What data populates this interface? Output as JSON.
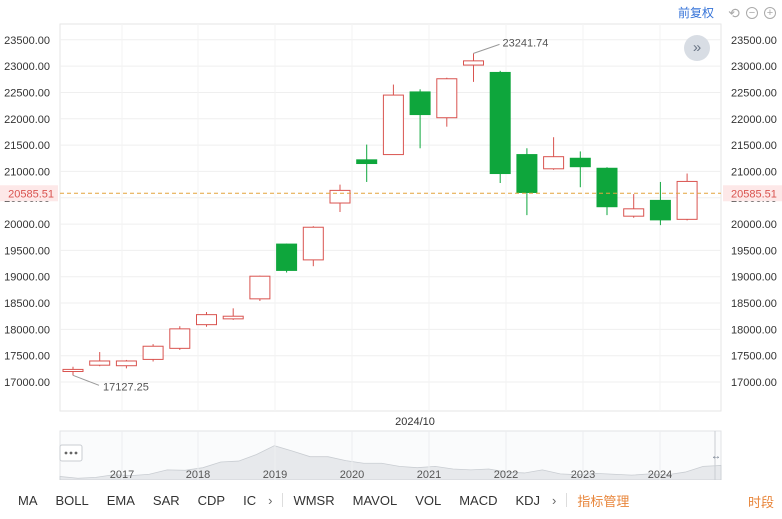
{
  "toolbar": {
    "adjust_label": "前复权",
    "undo_icon": "undo-icon",
    "zoom_out_icon": "zoom-out-icon",
    "zoom_in_icon": "zoom-in-icon"
  },
  "colors": {
    "up": "#d9534f",
    "down": "#0ea63c",
    "price_line": "#e3a33b",
    "price_label_bg": "#fde8e8",
    "price_label_text": "#d9534f",
    "navigator_fill": "#e7e9ec",
    "navigator_stroke": "#c9cdd2"
  },
  "chart_data": {
    "type": "candlestick",
    "yticks": [
      17000,
      17500,
      18000,
      18500,
      19000,
      19500,
      20000,
      20500,
      21000,
      21500,
      22000,
      22500,
      23000,
      23500
    ],
    "ytick_labels": [
      "17000.00",
      "17500.00",
      "18000.00",
      "18500.00",
      "19000.00",
      "19500.00",
      "20000.00",
      "20500.00",
      "21000.00",
      "21500.00",
      "22000.00",
      "22500.00",
      "23000.00",
      "23500.00"
    ],
    "ylim": [
      16450,
      23800
    ],
    "x_crosshair_label": "2024/10",
    "current_price": 20585.51,
    "current_price_label": "20585.51",
    "max_annotation": {
      "index": 15,
      "value": 23241.74,
      "label": "23241.74"
    },
    "min_annotation": {
      "index": 0,
      "value": 17127.25,
      "label": "17127.25"
    },
    "candles": [
      {
        "o": 17200,
        "h": 17290,
        "l": 17127.25,
        "c": 17240
      },
      {
        "o": 17320,
        "h": 17570,
        "l": 17300,
        "c": 17400
      },
      {
        "o": 17310,
        "h": 17420,
        "l": 17260,
        "c": 17400
      },
      {
        "o": 17430,
        "h": 17720,
        "l": 17390,
        "c": 17680
      },
      {
        "o": 17640,
        "h": 18060,
        "l": 17610,
        "c": 18010
      },
      {
        "o": 18090,
        "h": 18330,
        "l": 18050,
        "c": 18280
      },
      {
        "o": 18200,
        "h": 18400,
        "l": 18180,
        "c": 18250
      },
      {
        "o": 18580,
        "h": 19020,
        "l": 18540,
        "c": 19010
      },
      {
        "o": 19620,
        "h": 19630,
        "l": 19080,
        "c": 19120
      },
      {
        "o": 19320,
        "h": 19960,
        "l": 19200,
        "c": 19940
      },
      {
        "o": 20400,
        "h": 20750,
        "l": 20230,
        "c": 20640
      },
      {
        "o": 21220,
        "h": 21510,
        "l": 20800,
        "c": 21150
      },
      {
        "o": 21320,
        "h": 22650,
        "l": 21320,
        "c": 22450
      },
      {
        "o": 22510,
        "h": 22560,
        "l": 21440,
        "c": 22080
      },
      {
        "o": 22020,
        "h": 22780,
        "l": 21850,
        "c": 22760
      },
      {
        "o": 23020,
        "h": 23241.74,
        "l": 22700,
        "c": 23100
      },
      {
        "o": 22880,
        "h": 22910,
        "l": 20780,
        "c": 20960
      },
      {
        "o": 21320,
        "h": 21440,
        "l": 20170,
        "c": 20600
      },
      {
        "o": 21050,
        "h": 21650,
        "l": 21030,
        "c": 21280
      },
      {
        "o": 21250,
        "h": 21380,
        "l": 20700,
        "c": 21090
      },
      {
        "o": 21060,
        "h": 21080,
        "l": 20170,
        "c": 20330
      },
      {
        "o": 20150,
        "h": 20570,
        "l": 20120,
        "c": 20290
      },
      {
        "o": 20450,
        "h": 20800,
        "l": 19980,
        "c": 20080
      },
      {
        "o": 20090,
        "h": 20960,
        "l": 20070,
        "c": 20810
      }
    ],
    "navigator": {
      "year_labels": [
        "2017",
        "2018",
        "2019",
        "2020",
        "2021",
        "2022",
        "2023",
        "2024"
      ],
      "handle_icon": "ellipsis-handle-icon",
      "resize_icon": "resize-arrows-icon"
    }
  },
  "expand_icon": "double-chevron-right-icon",
  "indicators": {
    "main": [
      "MA",
      "BOLL",
      "EMA",
      "SAR",
      "CDP",
      "IC"
    ],
    "sub": [
      "WMSR",
      "MAVOL",
      "VOL",
      "MACD",
      "KDJ"
    ],
    "manage_label": "指标管理",
    "period_label": "时段",
    "more_icon": "chevron-right-icon"
  }
}
